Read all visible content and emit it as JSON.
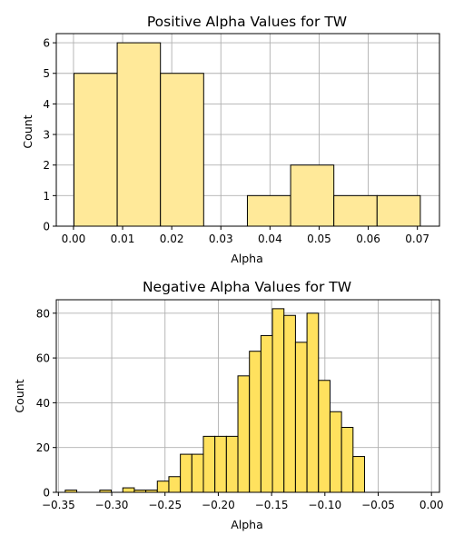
{
  "chart_data": [
    {
      "type": "histogram",
      "title": "Positive Alpha Values for TW",
      "xlabel": "Alpha",
      "ylabel": "Count",
      "bar_color": "#ffe999",
      "grid": true,
      "xlim": [
        -0.0035,
        0.0745
      ],
      "ylim": [
        0,
        6.3
      ],
      "xticks": [
        0.0,
        0.01,
        0.02,
        0.03,
        0.04,
        0.05,
        0.06,
        0.07
      ],
      "xtick_labels": [
        "0.00",
        "0.01",
        "0.02",
        "0.03",
        "0.04",
        "0.05",
        "0.06",
        "0.07"
      ],
      "yticks": [
        0,
        1,
        2,
        3,
        4,
        5,
        6
      ],
      "ytick_labels": [
        "0",
        "1",
        "2",
        "3",
        "4",
        "5",
        "6"
      ],
      "bins": [
        {
          "x0": 0.0001,
          "x1": 0.0089,
          "count": 5
        },
        {
          "x0": 0.0089,
          "x1": 0.0177,
          "count": 6
        },
        {
          "x0": 0.0177,
          "x1": 0.0265,
          "count": 5
        },
        {
          "x0": 0.0265,
          "x1": 0.0354,
          "count": 0
        },
        {
          "x0": 0.0354,
          "x1": 0.0442,
          "count": 1
        },
        {
          "x0": 0.0442,
          "x1": 0.053,
          "count": 2
        },
        {
          "x0": 0.053,
          "x1": 0.0618,
          "count": 1
        },
        {
          "x0": 0.0618,
          "x1": 0.0706,
          "count": 1
        }
      ]
    },
    {
      "type": "histogram",
      "title": "Negative Alpha Values for TW",
      "xlabel": "Alpha",
      "ylabel": "Count",
      "bar_color": "#ffe15e",
      "grid": true,
      "xlim": [
        -0.352,
        0.0075
      ],
      "ylim": [
        0,
        86
      ],
      "xticks": [
        -0.35,
        -0.3,
        -0.25,
        -0.2,
        -0.15,
        -0.1,
        -0.05,
        0.0
      ],
      "xtick_labels": [
        "−0.35",
        "−0.30",
        "−0.25",
        "−0.20",
        "−0.15",
        "−0.10",
        "−0.05",
        "0.00"
      ],
      "yticks": [
        0,
        20,
        40,
        60,
        80
      ],
      "ytick_labels": [
        "0",
        "20",
        "40",
        "60",
        "80"
      ],
      "bins": [
        {
          "x0": -0.3436,
          "x1": -0.3328,
          "count": 1
        },
        {
          "x0": -0.3328,
          "x1": -0.322,
          "count": 0
        },
        {
          "x0": -0.322,
          "x1": -0.3112,
          "count": 0
        },
        {
          "x0": -0.3112,
          "x1": -0.3004,
          "count": 1
        },
        {
          "x0": -0.3004,
          "x1": -0.2896,
          "count": 0
        },
        {
          "x0": -0.2896,
          "x1": -0.2788,
          "count": 2
        },
        {
          "x0": -0.2788,
          "x1": -0.268,
          "count": 1
        },
        {
          "x0": -0.268,
          "x1": -0.2572,
          "count": 1
        },
        {
          "x0": -0.2572,
          "x1": -0.2464,
          "count": 5
        },
        {
          "x0": -0.2464,
          "x1": -0.2356,
          "count": 7
        },
        {
          "x0": -0.2356,
          "x1": -0.2248,
          "count": 17
        },
        {
          "x0": -0.2248,
          "x1": -0.214,
          "count": 17
        },
        {
          "x0": -0.214,
          "x1": -0.2032,
          "count": 25
        },
        {
          "x0": -0.2032,
          "x1": -0.1924,
          "count": 25
        },
        {
          "x0": -0.1924,
          "x1": -0.1816,
          "count": 25
        },
        {
          "x0": -0.1816,
          "x1": -0.1708,
          "count": 52
        },
        {
          "x0": -0.1708,
          "x1": -0.16,
          "count": 63
        },
        {
          "x0": -0.16,
          "x1": -0.1492,
          "count": 70
        },
        {
          "x0": -0.1492,
          "x1": -0.1384,
          "count": 82
        },
        {
          "x0": -0.1384,
          "x1": -0.1276,
          "count": 79
        },
        {
          "x0": -0.1276,
          "x1": -0.1168,
          "count": 67
        },
        {
          "x0": -0.1168,
          "x1": -0.106,
          "count": 80
        },
        {
          "x0": -0.106,
          "x1": -0.0952,
          "count": 50
        },
        {
          "x0": -0.0952,
          "x1": -0.0844,
          "count": 36
        },
        {
          "x0": -0.0844,
          "x1": -0.0736,
          "count": 29
        },
        {
          "x0": -0.0736,
          "x1": -0.0628,
          "count": 16
        }
      ]
    }
  ]
}
